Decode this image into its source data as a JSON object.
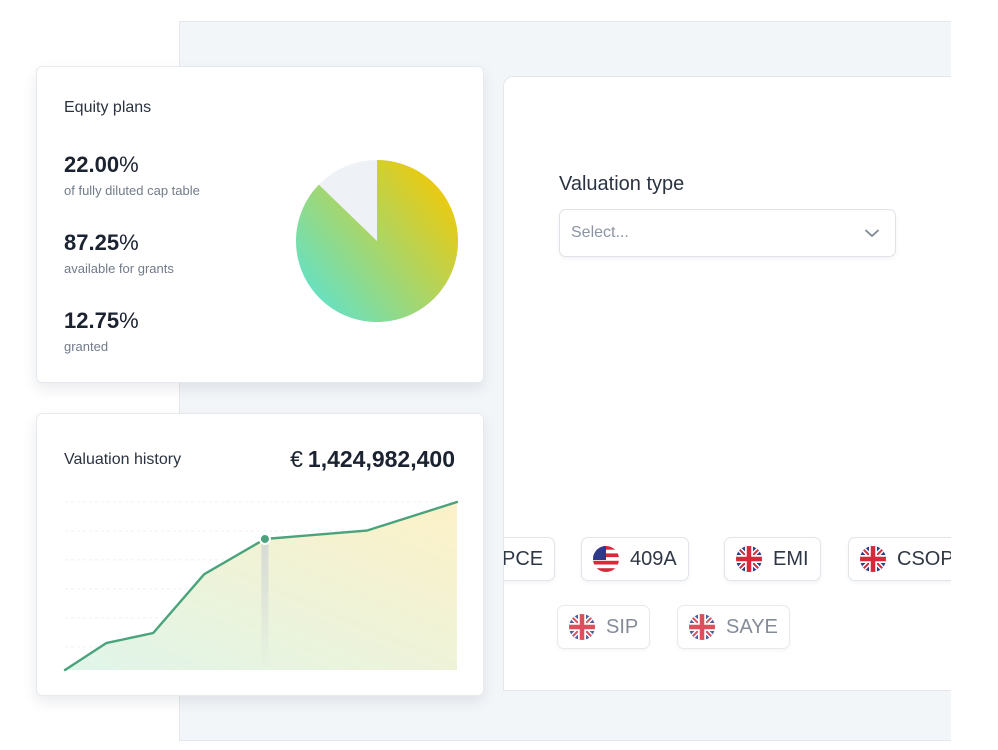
{
  "valuation_form": {
    "label": "Valuation type",
    "select_placeholder": "Select..."
  },
  "plan_chips": [
    {
      "label": "PCE",
      "flag": "none",
      "faded": false
    },
    {
      "label": "409A",
      "flag": "us-flag",
      "faded": false
    },
    {
      "label": "EMI",
      "flag": "uk-flag",
      "faded": false
    },
    {
      "label": "CSOP",
      "flag": "uk-flag",
      "faded": false
    },
    {
      "label": "SIP",
      "flag": "uk-flag",
      "faded": true
    },
    {
      "label": "SAYE",
      "flag": "uk-flag",
      "faded": true
    }
  ],
  "equity_card": {
    "title": "Equity plans",
    "stats": [
      {
        "value": "22.00",
        "unit": "%",
        "caption": "of fully diluted cap table"
      },
      {
        "value": "87.25",
        "unit": "%",
        "caption": "available for grants"
      },
      {
        "value": "12.75",
        "unit": "%",
        "caption": "granted"
      }
    ],
    "pie": {
      "granted_fraction": 0.1275,
      "available_fraction": 0.8725,
      "colors": {
        "gradient_start": "#f7c800",
        "gradient_end": "#6be0bd",
        "remainder": "#eef2f6"
      }
    }
  },
  "valuation_card": {
    "title": "Valuation history",
    "currency": "€",
    "amount": "1,424,982,400",
    "colors": {
      "line": "#4aa37c",
      "fill_start": "#dff5ea",
      "fill_end": "#fdf1c7"
    }
  },
  "chart_data": {
    "type": "area",
    "title": "Valuation history",
    "xlabel": "",
    "ylabel": "",
    "x": [
      1,
      2,
      3,
      4,
      5,
      6,
      7,
      8
    ],
    "values": [
      0,
      16,
      22,
      57,
      78,
      80,
      83,
      100
    ],
    "highlighted_index": 4,
    "ylim": [
      0,
      100
    ],
    "grid": "horizontal dashed"
  }
}
